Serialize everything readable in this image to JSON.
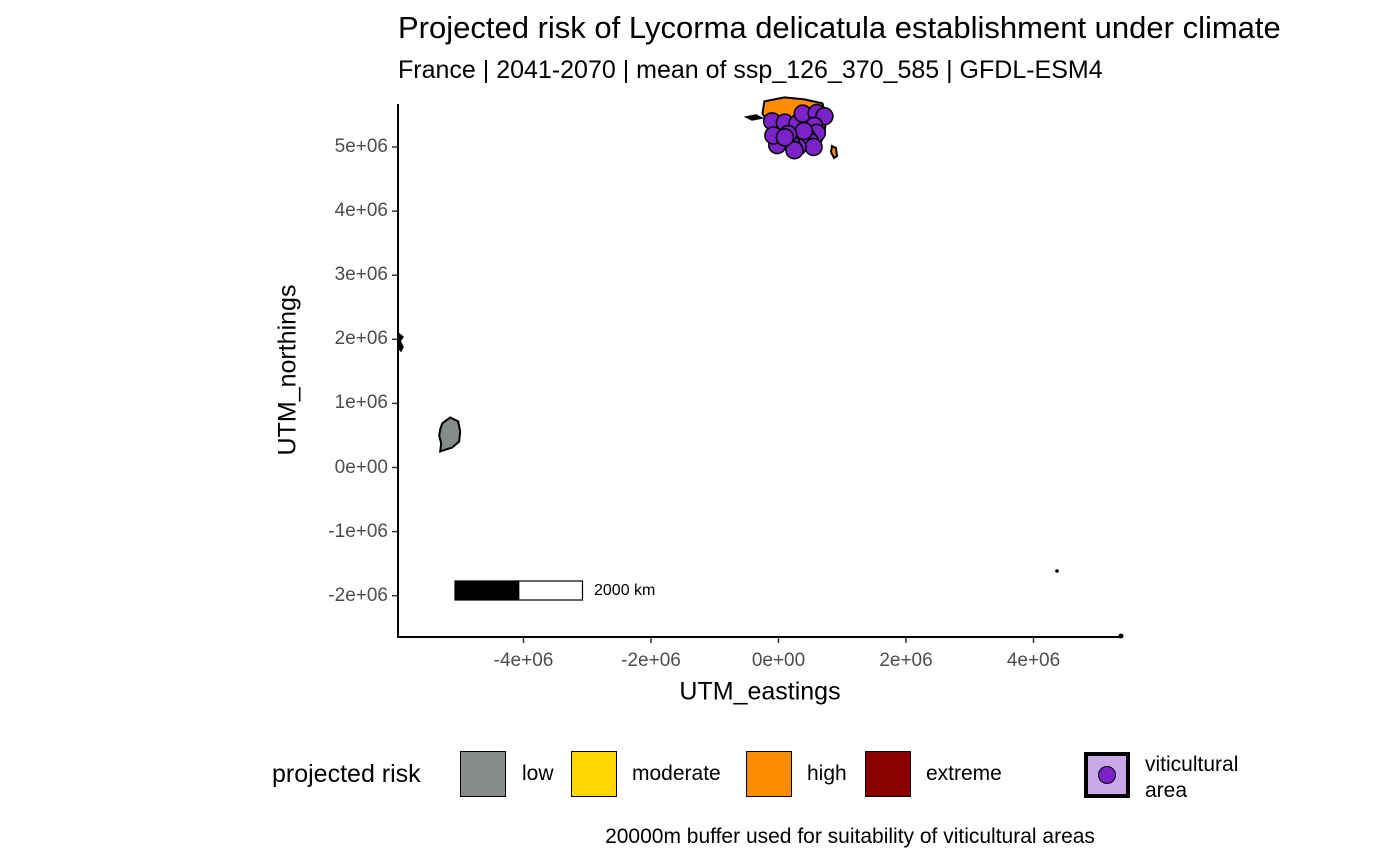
{
  "chart": {
    "title": "Projected risk of Lycorma delicatula establishment under climate",
    "subtitle": "France | 2041-2070 | mean of ssp_126_370_585 | GFDL-ESM4",
    "xlabel": "UTM_eastings",
    "ylabel": "UTM_northings",
    "caption": "20000m buffer used for suitability of viticultural areas",
    "scalebar_label": "2000 km"
  },
  "chart_data": {
    "type": "scatter",
    "xlim": [
      -6000000,
      5400000
    ],
    "ylim": [
      -2700000,
      5650000
    ],
    "x_ticks": [
      -4000000,
      -2000000,
      0,
      2000000,
      4000000
    ],
    "x_tick_labels": [
      "-4e+06",
      "-2e+06",
      "0e+00",
      "2e+06",
      "4e+06"
    ],
    "y_ticks": [
      -2000000,
      -1000000,
      0,
      1000000,
      2000000,
      3000000,
      4000000,
      5000000
    ],
    "y_tick_labels": [
      "-2e+06",
      "-1e+06",
      "0e+00",
      "1e+06",
      "2e+06",
      "3e+06",
      "4e+06",
      "5e+06"
    ],
    "grid": false,
    "legend_placement": "bottom",
    "scalebar_km": 2000,
    "territories": [
      {
        "region": "French Guiana",
        "risk": "low",
        "x": -5150000,
        "y": 500000
      },
      {
        "region": "Mainland France",
        "risk": "high",
        "x": 250000,
        "y": 5150000
      }
    ],
    "viticultural_areas": [
      {
        "x": -100000,
        "y": 5400000
      },
      {
        "x": 100000,
        "y": 5380000
      },
      {
        "x": 300000,
        "y": 5370000
      },
      {
        "x": 380000,
        "y": 5520000
      },
      {
        "x": 600000,
        "y": 5530000
      },
      {
        "x": 720000,
        "y": 5480000
      },
      {
        "x": 560000,
        "y": 5330000
      },
      {
        "x": 600000,
        "y": 5220000
      },
      {
        "x": 450000,
        "y": 5150000
      },
      {
        "x": 500000,
        "y": 5080000
      },
      {
        "x": 550000,
        "y": 5000000
      },
      {
        "x": 300000,
        "y": 5000000
      },
      {
        "x": 200000,
        "y": 5050000
      },
      {
        "x": 50000,
        "y": 5100000
      },
      {
        "x": -20000,
        "y": 5030000
      },
      {
        "x": 250000,
        "y": 4950000
      },
      {
        "x": -80000,
        "y": 5180000
      },
      {
        "x": 400000,
        "y": 5250000
      },
      {
        "x": 150000,
        "y": 5200000
      },
      {
        "x": 100000,
        "y": 5150000
      }
    ]
  },
  "legend": {
    "title": "projected risk",
    "items": [
      {
        "label": "low",
        "color": "#878b8a"
      },
      {
        "label": "moderate",
        "color": "#ffd700"
      },
      {
        "label": "high",
        "color": "#ff8c00"
      },
      {
        "label": "extreme",
        "color": "#8b0000"
      }
    ],
    "viticultural": {
      "label": "viticultural area",
      "fill": "#c8a8e8",
      "dot_color": "#7b22c8"
    }
  }
}
